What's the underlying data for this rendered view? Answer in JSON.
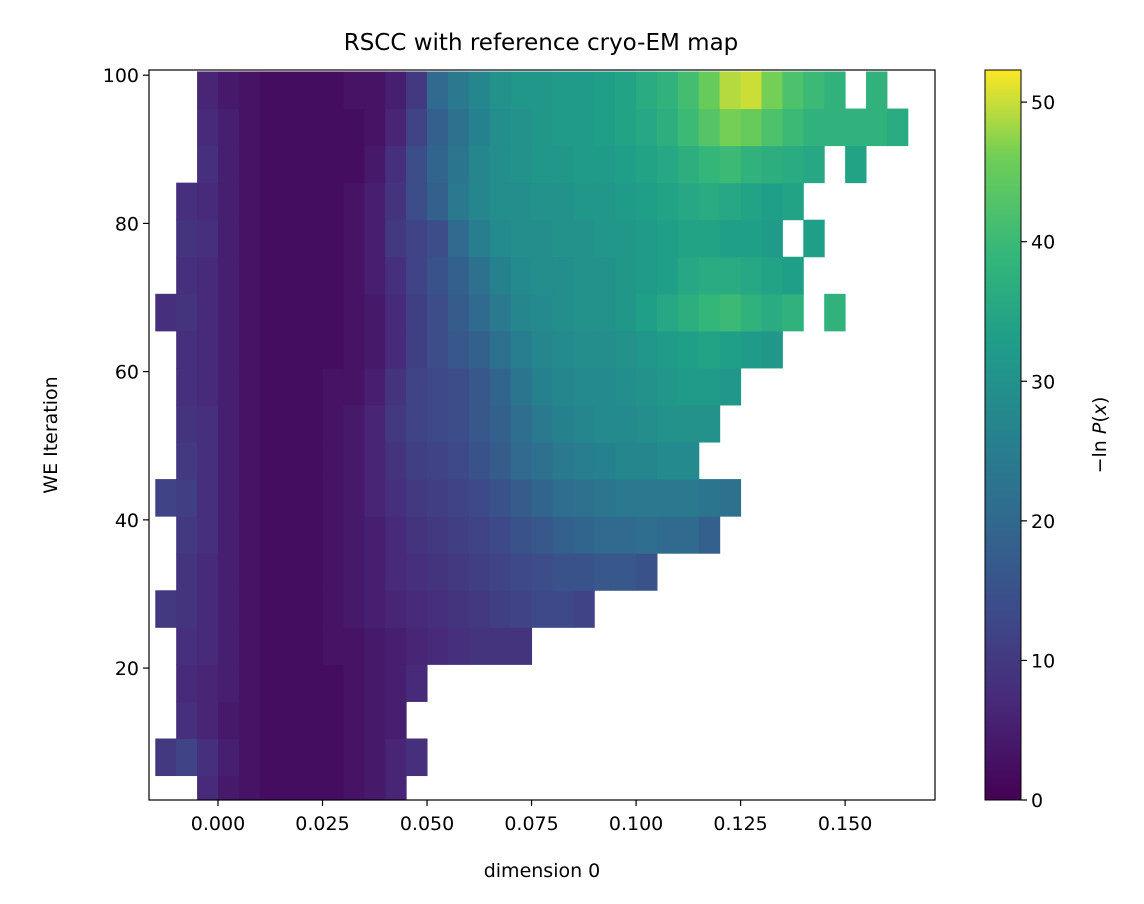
{
  "chart_data": {
    "type": "heatmap",
    "title": "RSCC with reference cryo-EM map",
    "xlabel": "dimension 0",
    "ylabel": "WE Iteration",
    "colorbar_label": "−ln P(x)",
    "colorbar_label_parts": [
      "−ln ",
      "P",
      "(",
      "x",
      ")"
    ],
    "colormap": "viridis",
    "clim": [
      0,
      52.3
    ],
    "colorbar_ticks": [
      0,
      10,
      20,
      30,
      40,
      50
    ],
    "xlim": [
      -0.0165,
      0.1715
    ],
    "ylim": [
      2.2,
      100.7
    ],
    "xticks": [
      0.0,
      0.025,
      0.05,
      0.075,
      0.1,
      0.125,
      0.15
    ],
    "xtick_labels": [
      "0.000",
      "0.025",
      "0.050",
      "0.075",
      "0.100",
      "0.125",
      "0.150"
    ],
    "yticks": [
      20,
      40,
      60,
      80,
      100
    ],
    "ytick_labels": [
      "20",
      "40",
      "60",
      "80",
      "100"
    ],
    "x_bin_start": -0.015,
    "x_bin_width": 0.005,
    "y_bin_start": 0.5,
    "y_bin_height": 5,
    "grid": false,
    "values_rows_bottom_to_top": [
      [
        null,
        null,
        7,
        4,
        3,
        2,
        2,
        2,
        2,
        3,
        4,
        6
      ],
      [
        10,
        12,
        8,
        5,
        3,
        2,
        2,
        2,
        2,
        3,
        4,
        6,
        8
      ],
      [
        null,
        8,
        6,
        4,
        3,
        2,
        2,
        2,
        2,
        3,
        4,
        5
      ],
      [
        null,
        7,
        6,
        5,
        3,
        2,
        2,
        2,
        2,
        3,
        4,
        5,
        7
      ],
      [
        null,
        8,
        7,
        5,
        3,
        2,
        2,
        2,
        3,
        3,
        4,
        5,
        6,
        7,
        8,
        9,
        9,
        9
      ],
      [
        10,
        9,
        7,
        5,
        3,
        2,
        2,
        2,
        3,
        4,
        5,
        6,
        7,
        8,
        9,
        10,
        11,
        12,
        13,
        13,
        12
      ],
      [
        null,
        9,
        7,
        5,
        3,
        2,
        2,
        2,
        3,
        4,
        5,
        7,
        8,
        9,
        10,
        11,
        12,
        13,
        14,
        15,
        15,
        16,
        16,
        15
      ],
      [
        null,
        10,
        8,
        5,
        3,
        2,
        2,
        2,
        3,
        4,
        5,
        7,
        9,
        10,
        11,
        12,
        13,
        15,
        16,
        18,
        19,
        20,
        20,
        21,
        20,
        20,
        18
      ],
      [
        12,
        11,
        8,
        5,
        3,
        2,
        2,
        2,
        3,
        4,
        6,
        8,
        10,
        11,
        12,
        13,
        15,
        17,
        19,
        21,
        22,
        23,
        24,
        24,
        24,
        24,
        23,
        22
      ],
      [
        null,
        10,
        8,
        5,
        3,
        2,
        2,
        2,
        3,
        4,
        6,
        9,
        11,
        12,
        13,
        15,
        17,
        20,
        22,
        24,
        25,
        26,
        27,
        27,
        28,
        28
      ],
      [
        null,
        9,
        8,
        5,
        3,
        2,
        2,
        2,
        3,
        4,
        6,
        10,
        12,
        13,
        14,
        16,
        18,
        21,
        24,
        26,
        27,
        28,
        28,
        29,
        30,
        30,
        30
      ],
      [
        null,
        8,
        7,
        5,
        3,
        2,
        2,
        2,
        3,
        3,
        5,
        9,
        12,
        13,
        14,
        16,
        19,
        23,
        26,
        27,
        28,
        28,
        29,
        30,
        31,
        32,
        32,
        31
      ],
      [
        null,
        8,
        7,
        5,
        3,
        2,
        2,
        2,
        2,
        3,
        4,
        7,
        11,
        14,
        16,
        18,
        22,
        25,
        27,
        28,
        29,
        29,
        30,
        31,
        32,
        33,
        34,
        33,
        32,
        31
      ],
      [
        8,
        9,
        7,
        5,
        3,
        2,
        2,
        2,
        2,
        3,
        4,
        7,
        11,
        14,
        17,
        20,
        24,
        27,
        28,
        29,
        30,
        30,
        31,
        33,
        35,
        37,
        39,
        40,
        38,
        36,
        38,
        null,
        38
      ],
      [
        null,
        8,
        7,
        5,
        3,
        2,
        2,
        2,
        2,
        3,
        5,
        8,
        12,
        15,
        18,
        22,
        26,
        28,
        29,
        29,
        30,
        30,
        31,
        32,
        33,
        35,
        36,
        36,
        35,
        34,
        33
      ],
      [
        null,
        9,
        8,
        5,
        3,
        2,
        2,
        2,
        2,
        3,
        5,
        10,
        12,
        14,
        20,
        25,
        28,
        29,
        29,
        30,
        30,
        31,
        31,
        32,
        33,
        34,
        34,
        33,
        33,
        32,
        null,
        33
      ],
      [
        null,
        8,
        7,
        5,
        3,
        2,
        2,
        2,
        2,
        3,
        5,
        9,
        14,
        18,
        24,
        27,
        29,
        29,
        30,
        30,
        31,
        31,
        32,
        33,
        34,
        35,
        36,
        35,
        34,
        33,
        34
      ],
      [
        null,
        null,
        8,
        5,
        3,
        2,
        2,
        2,
        2,
        2,
        4,
        8,
        14,
        19,
        23,
        27,
        29,
        30,
        31,
        31,
        32,
        32,
        33,
        34,
        35,
        37,
        39,
        40,
        38,
        37,
        36,
        35,
        null,
        34
      ],
      [
        null,
        null,
        7,
        5,
        3,
        2,
        2,
        2,
        2,
        2,
        3,
        6,
        12,
        18,
        22,
        26,
        29,
        30,
        31,
        32,
        32,
        33,
        34,
        35,
        37,
        40,
        43,
        46,
        45,
        42,
        40,
        38,
        38,
        38,
        38,
        36
      ],
      [
        null,
        null,
        6,
        4,
        3,
        2,
        2,
        2,
        2,
        3,
        3,
        5,
        10,
        20,
        24,
        27,
        30,
        31,
        31,
        32,
        32,
        33,
        34,
        36,
        38,
        41,
        45,
        49,
        50,
        46,
        42,
        40,
        38,
        null,
        38
      ]
    ]
  }
}
